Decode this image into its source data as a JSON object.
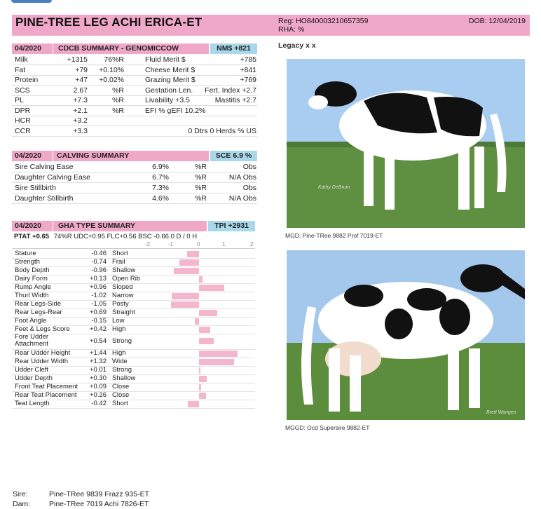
{
  "header": {
    "name": "PINE-TREE LEG ACHI ERICA-ET",
    "reg": "Reg: HO840003210657359",
    "rha": "RHA: %",
    "dob": "DOB: 12/04/2019"
  },
  "legacy": "Legacy x x",
  "cdcb": {
    "date": "04/2020",
    "title": "CDCB SUMMARY - GENOMICCOW",
    "badge": "NM$ +821",
    "rows": [
      {
        "l": "Milk",
        "v": "+1315",
        "r": "76%R",
        "l2": "Fluid Merit $",
        "v2": "+785"
      },
      {
        "l": "Fat",
        "v": "+79",
        "r": "+0.10%",
        "l2": "Cheese Merit $",
        "v2": "+841"
      },
      {
        "l": "Protein",
        "v": "+47",
        "r": "+0.02%",
        "l2": "Grazing Merit $",
        "v2": "+769"
      },
      {
        "l": "SCS",
        "v": "2.67",
        "r": "%R",
        "l2": "Gestation Len.",
        "v2": "Fert. Index +2.7"
      },
      {
        "l": "PL",
        "v": "+7.3",
        "r": "%R",
        "l2": "Livability  +3.5",
        "v2": "Mastitis  +2.7"
      },
      {
        "l": "DPR",
        "v": "+2.1",
        "r": "%R",
        "l2": "EFI  %    gEFI  10.2%",
        "v2": ""
      },
      {
        "l": "HCR",
        "v": "+3.2",
        "r": "",
        "l2": "",
        "v2": ""
      },
      {
        "l": "CCR",
        "v": "+3.3",
        "r": "",
        "l2": "",
        "v2": "0 Dtrs  0 Herds  % US"
      }
    ]
  },
  "calving": {
    "date": "04/2020",
    "title": "CALVING SUMMARY",
    "badge": "SCE 6.9 %",
    "rows": [
      {
        "l": "Sire Calving Ease",
        "v": "6.9%",
        "r": "%R",
        "o": "Obs"
      },
      {
        "l": "Daughter Calving Ease",
        "v": "6.7%",
        "r": "%R",
        "o": "N/A Obs"
      },
      {
        "l": "Sire Stillbirth",
        "v": "7.3%",
        "r": "%R",
        "o": "Obs"
      },
      {
        "l": "Daughter Stillbirth",
        "v": "4.6%",
        "r": "%R",
        "o": "N/A Obs"
      }
    ]
  },
  "type": {
    "date": "04/2020",
    "title": "GHA TYPE SUMMARY",
    "badge": "TPI +2931",
    "ptat_label": "PTAT +0.65",
    "ptat_rest": "74%R   UDC+0.95   FLC+0.56   BSC -0.66   0 D /  0 H",
    "scale": [
      "-2",
      "-1",
      "0",
      "1",
      "2"
    ],
    "traits": [
      {
        "name": "Stature",
        "value": "-0.46",
        "desc": "Short",
        "v": -0.46
      },
      {
        "name": "Strength",
        "value": "-0.74",
        "desc": "Frail",
        "v": -0.74
      },
      {
        "name": "Body Depth",
        "value": "-0.96",
        "desc": "Shallow",
        "v": -0.96
      },
      {
        "name": "Dairy Form",
        "value": "+0.13",
        "desc": "Open Rib",
        "v": 0.13
      },
      {
        "name": "Rump Angle",
        "value": "+0.96",
        "desc": "Sloped",
        "v": 0.96
      },
      {
        "name": "Thurl Width",
        "value": "-1.02",
        "desc": "Narrow",
        "v": -1.02
      },
      {
        "name": "Rear Legs-Side",
        "value": "-1.05",
        "desc": "Posty",
        "v": -1.05
      },
      {
        "name": "Rear Legs-Rear",
        "value": "+0.69",
        "desc": "Straight",
        "v": 0.69
      },
      {
        "name": "Foot Angle",
        "value": "-0.15",
        "desc": "Low",
        "v": -0.15
      },
      {
        "name": "Feet & Legs Score",
        "value": "+0.42",
        "desc": "High",
        "v": 0.42
      },
      {
        "name": "Fore Udder Attachment",
        "value": "+0.54",
        "desc": "Strong",
        "v": 0.54,
        "two": true
      },
      {
        "name": "Rear Udder Height",
        "value": "+1.44",
        "desc": "High",
        "v": 1.44
      },
      {
        "name": "Rear Udder Width",
        "value": "+1.32",
        "desc": "Wide",
        "v": 1.32
      },
      {
        "name": "Udder Cleft",
        "value": "+0.01",
        "desc": "Strong",
        "v": 0.01
      },
      {
        "name": "Udder Depth",
        "value": "+0.30",
        "desc": "Shallow",
        "v": 0.3
      },
      {
        "name": "Front Teat Placement",
        "value": "+0.09",
        "desc": "Close",
        "v": 0.09
      },
      {
        "name": "Rear Teat Placement",
        "value": "+0.26",
        "desc": "Close",
        "v": 0.26
      },
      {
        "name": "Teat Length",
        "value": "-0.42",
        "desc": "Short",
        "v": -0.42
      }
    ]
  },
  "photo1": {
    "watermark": "Kathy DeBruin",
    "caption": "MGD: Pine-TRee 9882 Prof 7019-ET"
  },
  "photo2": {
    "watermark": "Brett Wangen",
    "caption": "MGGD: Ocd Supersire 9882-ET"
  },
  "pedigree": {
    "sire_label": "Sire:",
    "sire": "Pine-TRee 9839 Frazz 935-ET",
    "dam_label": "Dam:",
    "dam": "Pine-TRee 7019 Achi 7826-ET"
  },
  "colors": {
    "pink": "#f0a8c8",
    "blue": "#a8d8ea",
    "bar": "#f4b6cc"
  }
}
